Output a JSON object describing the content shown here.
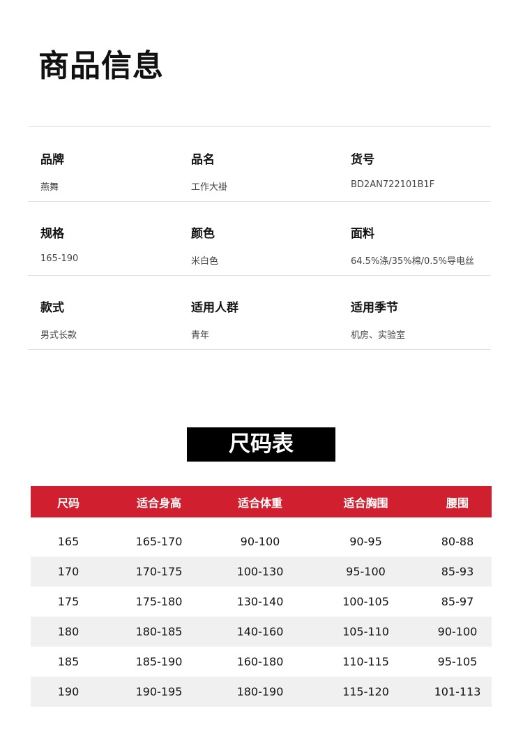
{
  "title": "商品信息",
  "info": [
    {
      "label": "品牌",
      "value": "燕舞"
    },
    {
      "label": "品名",
      "value": "工作大褂"
    },
    {
      "label": "货号",
      "value": "BD2AN722101B1F"
    },
    {
      "label": "规格",
      "value": "165-190"
    },
    {
      "label": "颜色",
      "value": "米白色"
    },
    {
      "label": "面料",
      "value": "64.5%涤/35%棉/0.5%导电丝"
    },
    {
      "label": "款式",
      "value": "男式长款"
    },
    {
      "label": "适用人群",
      "value": "青年"
    },
    {
      "label": "适用季节",
      "value": "机房、实验室"
    }
  ],
  "size_chart": {
    "title": "尺码表",
    "accent": "#d0202f",
    "headers": [
      "尺码",
      "适合身高",
      "适合体重",
      "适合胸围",
      "腰围"
    ],
    "rows": [
      [
        "165",
        "165-170",
        "90-100",
        "90-95",
        "80-88"
      ],
      [
        "170",
        "170-175",
        "100-130",
        "95-100",
        "85-93"
      ],
      [
        "175",
        "175-180",
        "130-140",
        "100-105",
        "85-97"
      ],
      [
        "180",
        "180-185",
        "140-160",
        "105-110",
        "90-100"
      ],
      [
        "185",
        "185-190",
        "160-180",
        "110-115",
        "95-105"
      ],
      [
        "190",
        "190-195",
        "180-190",
        "115-120",
        "101-113"
      ]
    ]
  }
}
